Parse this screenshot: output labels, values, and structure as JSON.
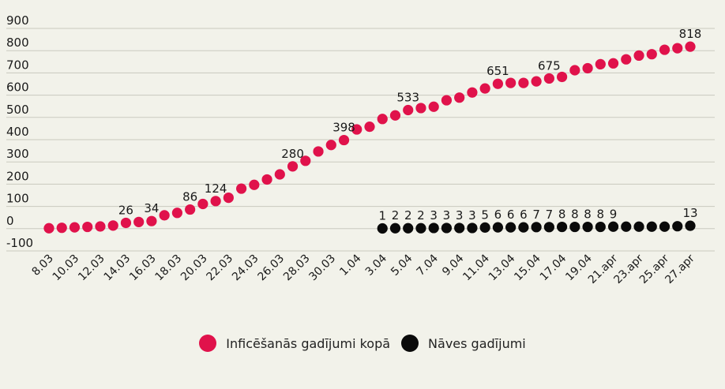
{
  "chart_data": {
    "type": "scatter",
    "title": "",
    "xlabel": "",
    "ylabel": "",
    "ylim": [
      -100,
      900
    ],
    "y_ticks": [
      900,
      800,
      700,
      600,
      500,
      400,
      300,
      200,
      100,
      0,
      -100
    ],
    "grid": true,
    "legend_position": "bottom",
    "x_tick_labels": [
      "8.03",
      "10.03",
      "12.03",
      "14.03",
      "16.03",
      "18.03",
      "20.03",
      "22.03",
      "24.03",
      "26.03",
      "28.03",
      "30.03",
      "1.04",
      "3.04",
      "5.04",
      "7.04",
      "9.04",
      "11.04",
      "13.04",
      "15.04",
      "17.04",
      "19.04",
      "21.apr",
      "23.apr",
      "25.apr",
      "27.apr"
    ],
    "x": [
      "8.03",
      "9.03",
      "10.03",
      "11.03",
      "12.03",
      "13.03",
      "14.03",
      "15.03",
      "16.03",
      "17.03",
      "18.03",
      "19.03",
      "20.03",
      "21.03",
      "22.03",
      "23.03",
      "24.03",
      "25.03",
      "26.03",
      "27.03",
      "28.03",
      "29.03",
      "30.03",
      "31.03",
      "1.04",
      "2.04",
      "3.04",
      "4.04",
      "5.04",
      "6.04",
      "7.04",
      "8.04",
      "9.04",
      "10.04",
      "11.04",
      "12.04",
      "13.04",
      "14.04",
      "15.04",
      "16.04",
      "17.04",
      "18.04",
      "19.04",
      "20.04",
      "21.apr",
      "22.apr",
      "23.apr",
      "24.apr",
      "25.apr",
      "26.apr",
      "27.apr"
    ],
    "series": [
      {
        "name": "Inficēšanās gadījumi kopā",
        "color": "#e0124b",
        "start_index": 0,
        "values": [
          2,
          4,
          6,
          8,
          10,
          14,
          26,
          30,
          34,
          60,
          71,
          86,
          111,
          124,
          139,
          180,
          197,
          221,
          244,
          280,
          305,
          347,
          376,
          398,
          446,
          458,
          493,
          509,
          533,
          542,
          548,
          577,
          589,
          612,
          630,
          651,
          655,
          655,
          662,
          675,
          682,
          712,
          721,
          739,
          743,
          761,
          778,
          784,
          804,
          811,
          818
        ],
        "labels": {
          "6": "26",
          "8": "34",
          "11": "86",
          "13": "124",
          "19": "280",
          "23": "398",
          "28": "533",
          "35": "651",
          "39": "675",
          "50": "818"
        }
      },
      {
        "name": "Nāves gadījumi",
        "color": "#0a0a0a",
        "start_index": 26,
        "values": [
          1,
          2,
          2,
          2,
          3,
          3,
          3,
          3,
          5,
          6,
          6,
          6,
          7,
          7,
          8,
          8,
          8,
          8,
          9,
          9,
          9,
          9,
          9,
          11,
          13
        ],
        "labels": [
          "1",
          "2",
          "2",
          "2",
          "3",
          "3",
          "3",
          "3",
          "5",
          "6",
          "6",
          "6",
          "7",
          "7",
          "8",
          "8",
          "8",
          "8",
          "9",
          "",
          "",
          "",
          "",
          "",
          "13"
        ]
      }
    ]
  }
}
